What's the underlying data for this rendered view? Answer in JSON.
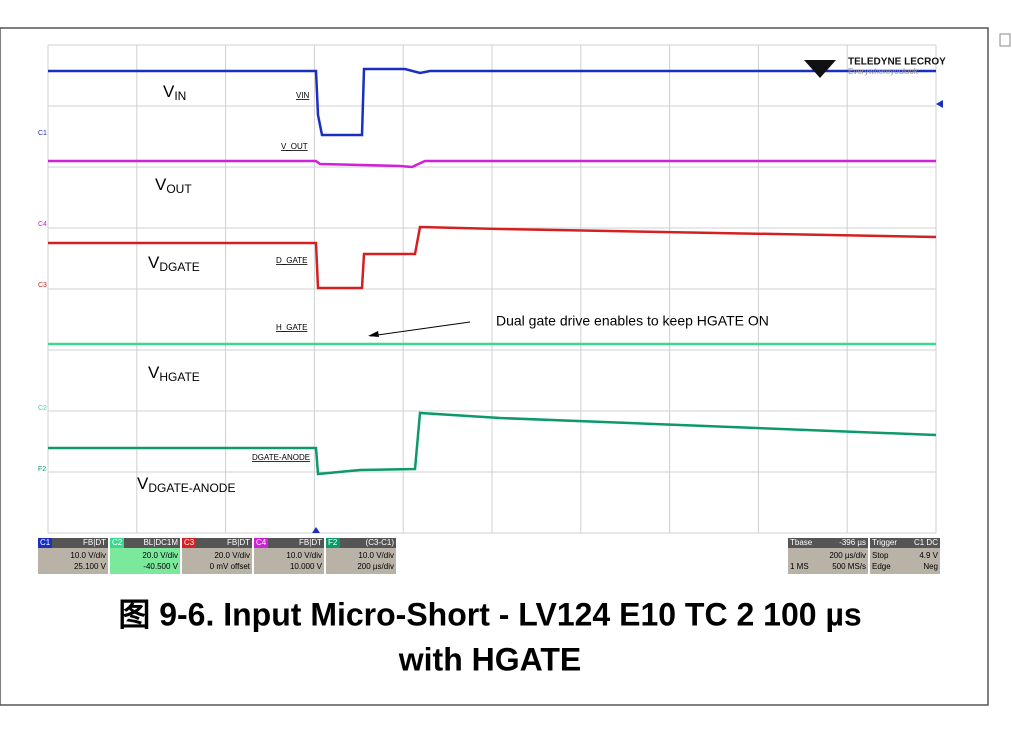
{
  "scope": {
    "logo": "TELEDYNE LECROY",
    "tagline": "Everywhereyoulook",
    "trace_labels": [
      {
        "main": "V",
        "sub": "IN"
      },
      {
        "main": "V",
        "sub": "OUT"
      },
      {
        "main": "V",
        "sub": "DGATE"
      },
      {
        "main": "V",
        "sub": "HGATE"
      },
      {
        "main": "V",
        "sub": "DGATE-ANODE"
      }
    ],
    "markers": [
      "VIN",
      "V_OUT",
      "D_GATE",
      "H_GATE",
      "DGATE-ANODE"
    ],
    "channel_tags": [
      "C1",
      "C4",
      "C3",
      "C2",
      "F2"
    ],
    "annotation": "Dual gate drive enables to keep HGATE ON",
    "channels": [
      {
        "name": "C1",
        "mode": "FB|DT",
        "scale": "10.0 V/div",
        "offset": "25.100 V"
      },
      {
        "name": "C2",
        "mode": "BL|DC1M",
        "scale": "20.0 V/div",
        "offset": "-40.500 V"
      },
      {
        "name": "C3",
        "mode": "FB|DT",
        "scale": "20.0 V/div",
        "offset": "0 mV offset"
      },
      {
        "name": "C4",
        "mode": "FB|DT",
        "scale": "10.0 V/div",
        "offset": "10.000 V"
      },
      {
        "name": "F2",
        "mode": "(C3-C1)",
        "scale": "10.0 V/div",
        "offset": "200 µs/div"
      }
    ],
    "timebase": {
      "label": "Tbase",
      "delay": "-396 µs",
      "per_div": "200 µs/div",
      "points": "1 MS",
      "rate": "500 MS/s"
    },
    "trigger": {
      "label": "Trigger",
      "source": "C1 DC",
      "mode": "Stop",
      "level": "4.9 V",
      "type": "Edge",
      "slope": "Neg"
    }
  },
  "caption": {
    "line1": "图 9-6. Input Micro-Short - LV124 E10 TC 2 100 µs",
    "line2": "with HGATE"
  }
}
